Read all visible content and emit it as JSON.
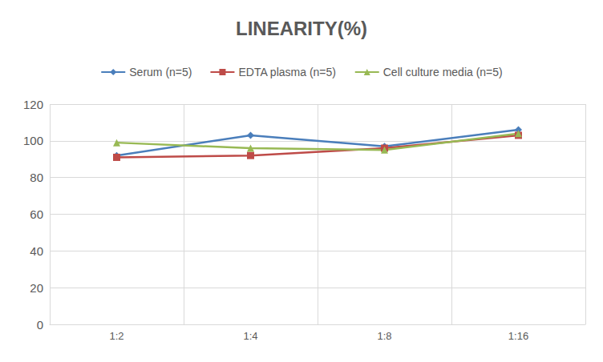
{
  "chart_data": {
    "type": "line",
    "title": "LINEARITY(%)",
    "categories": [
      "1:2",
      "1:4",
      "1:8",
      "1:16"
    ],
    "series": [
      {
        "name": "Serum (n=5)",
        "color": "#4a7ebb",
        "marker": "diamond",
        "values": [
          92,
          103,
          97,
          106
        ]
      },
      {
        "name": "EDTA plasma (n=5)",
        "color": "#be4b48",
        "marker": "square",
        "values": [
          91,
          92,
          96,
          103
        ]
      },
      {
        "name": "Cell culture media (n=5)",
        "color": "#98b954",
        "marker": "triangle",
        "values": [
          99,
          96,
          95,
          104
        ]
      }
    ],
    "ylim": [
      0,
      120
    ],
    "yticks": [
      0,
      20,
      40,
      60,
      80,
      100,
      120
    ],
    "grid": true,
    "legend": "top"
  }
}
